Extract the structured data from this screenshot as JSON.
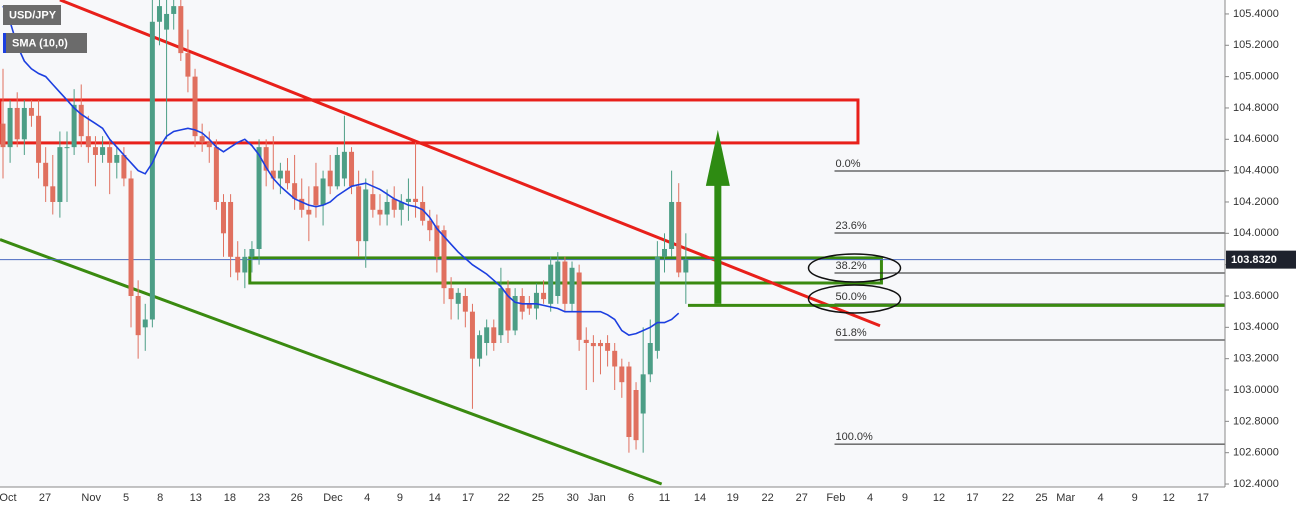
{
  "chart_data": {
    "type": "candlestick",
    "title": "USD/JPY",
    "up_color": "#4c9e86",
    "down_color": "#e0705f",
    "grid": true,
    "xlim": [
      -0.42,
      171.8
    ],
    "ylim": [
      102.381,
      105.489
    ],
    "yticks": [
      {
        "value": 102.4,
        "label": "102.4000"
      },
      {
        "value": 102.6,
        "label": "102.6000"
      },
      {
        "value": 102.8,
        "label": "102.8000"
      },
      {
        "value": 103.0,
        "label": "103.0000"
      },
      {
        "value": 103.2,
        "label": "103.2000"
      },
      {
        "value": 103.4,
        "label": "103.4000"
      },
      {
        "value": 103.6,
        "label": "103.6000"
      },
      {
        "value": 103.8,
        "label": "103.8000"
      },
      {
        "value": 104.0,
        "label": "104.0000"
      },
      {
        "value": 104.2,
        "label": "104.2000"
      },
      {
        "value": 104.4,
        "label": "104.4000"
      },
      {
        "value": 104.6,
        "label": "104.6000"
      },
      {
        "value": 104.8,
        "label": "104.8000"
      },
      {
        "value": 105.0,
        "label": "105.0000"
      },
      {
        "value": 105.2,
        "label": "105.2000"
      },
      {
        "value": 105.4,
        "label": "105.4000"
      }
    ],
    "xticks": [
      {
        "value": 0.7,
        "label": "Oct"
      },
      {
        "value": 5.9,
        "label": "27"
      },
      {
        "value": 12.4,
        "label": "Nov"
      },
      {
        "value": 17.3,
        "label": "5"
      },
      {
        "value": 22.1,
        "label": "8"
      },
      {
        "value": 27.1,
        "label": "13"
      },
      {
        "value": 31.9,
        "label": "18"
      },
      {
        "value": 36.7,
        "label": "23"
      },
      {
        "value": 41.3,
        "label": "26"
      },
      {
        "value": 46.4,
        "label": "Dec"
      },
      {
        "value": 51.2,
        "label": "4"
      },
      {
        "value": 55.8,
        "label": "9"
      },
      {
        "value": 60.7,
        "label": "14"
      },
      {
        "value": 65.4,
        "label": "17"
      },
      {
        "value": 70.4,
        "label": "22"
      },
      {
        "value": 75.2,
        "label": "25"
      },
      {
        "value": 80.1,
        "label": "30"
      },
      {
        "value": 83.5,
        "label": "Jan"
      },
      {
        "value": 88.3,
        "label": "6"
      },
      {
        "value": 93.0,
        "label": "11"
      },
      {
        "value": 98.0,
        "label": "14"
      },
      {
        "value": 102.6,
        "label": "19"
      },
      {
        "value": 107.5,
        "label": "22"
      },
      {
        "value": 112.3,
        "label": "27"
      },
      {
        "value": 117.1,
        "label": "Feb"
      },
      {
        "value": 121.9,
        "label": "4"
      },
      {
        "value": 126.8,
        "label": "9"
      },
      {
        "value": 131.6,
        "label": "12"
      },
      {
        "value": 136.3,
        "label": "17"
      },
      {
        "value": 141.3,
        "label": "22"
      },
      {
        "value": 146.0,
        "label": "25"
      },
      {
        "value": 149.4,
        "label": "Mar"
      },
      {
        "value": 154.3,
        "label": "4"
      },
      {
        "value": 159.1,
        "label": "9"
      },
      {
        "value": 163.9,
        "label": "12"
      },
      {
        "value": 168.7,
        "label": "17"
      }
    ],
    "open": [
      104.7,
      104.55,
      104.8,
      104.6,
      104.8,
      104.75,
      104.45,
      104.3,
      104.2,
      104.55,
      104.55,
      104.82,
      104.62,
      104.55,
      104.5,
      104.55,
      104.45,
      104.5,
      104.35,
      103.6,
      103.4,
      103.45,
      105.35,
      105.3,
      105.4,
      105.45,
      105.15,
      105.0,
      104.62,
      104.58,
      104.55,
      104.2,
      104.2,
      103.85,
      103.75,
      103.85,
      103.9,
      104.55,
      104.4,
      104.35,
      104.4,
      104.32,
      104.22,
      104.15,
      104.3,
      104.18,
      104.4,
      104.3,
      104.35,
      104.52,
      104.3,
      103.95,
      104.25,
      104.15,
      104.12,
      104.22,
      104.15,
      104.2,
      104.22,
      104.2,
      104.08,
      104.05,
      104.02,
      103.65,
      103.55,
      103.6,
      103.5,
      103.2,
      103.3,
      103.4,
      103.35,
      103.65,
      103.38,
      103.6,
      103.55,
      103.52,
      103.62,
      103.55,
      103.6,
      103.82,
      103.55,
      103.75,
      103.32,
      103.3,
      103.3,
      103.3,
      103.25,
      103.15,
      103.15,
      103.0,
      102.85,
      103.1,
      103.25,
      103.85,
      103.9,
      104.2,
      103.75
    ],
    "high": [
      105.05,
      104.85,
      104.9,
      104.85,
      104.85,
      104.85,
      104.55,
      104.5,
      104.65,
      104.65,
      104.92,
      104.95,
      104.75,
      104.62,
      104.62,
      104.6,
      104.55,
      104.55,
      104.4,
      103.7,
      103.55,
      105.65,
      105.6,
      105.55,
      105.6,
      105.55,
      105.3,
      105.05,
      104.7,
      104.65,
      104.6,
      104.25,
      104.25,
      103.95,
      103.9,
      103.95,
      104.6,
      104.6,
      104.62,
      104.45,
      104.48,
      104.5,
      104.35,
      104.3,
      104.45,
      104.4,
      104.5,
      104.55,
      104.75,
      104.55,
      104.4,
      104.35,
      104.4,
      104.25,
      104.28,
      104.3,
      104.25,
      104.35,
      104.58,
      104.3,
      104.15,
      104.12,
      104.05,
      103.72,
      103.65,
      103.65,
      103.55,
      103.38,
      103.45,
      103.45,
      103.78,
      103.7,
      103.65,
      103.65,
      103.6,
      103.68,
      103.7,
      103.85,
      103.88,
      103.85,
      103.82,
      103.8,
      103.4,
      103.35,
      103.32,
      103.35,
      103.3,
      103.2,
      103.18,
      103.05,
      103.4,
      103.45,
      103.95,
      104.0,
      104.4,
      104.32,
      104.0
    ],
    "low": [
      104.35,
      104.45,
      104.55,
      104.5,
      104.68,
      104.35,
      104.2,
      104.12,
      104.1,
      104.2,
      104.5,
      104.55,
      104.45,
      104.3,
      104.45,
      104.25,
      104.35,
      104.3,
      103.4,
      103.2,
      103.25,
      103.4,
      105.2,
      104.6,
      105.3,
      105.1,
      104.9,
      104.55,
      104.52,
      104.45,
      104.15,
      103.85,
      103.72,
      103.7,
      103.65,
      103.75,
      103.8,
      104.3,
      104.28,
      104.25,
      104.28,
      104.15,
      104.1,
      103.95,
      104.1,
      104.05,
      104.25,
      104.28,
      104.3,
      104.25,
      103.85,
      103.78,
      104.1,
      104.05,
      104.05,
      104.1,
      104.05,
      104.08,
      104.1,
      104.05,
      103.95,
      103.75,
      103.55,
      103.45,
      103.45,
      103.4,
      102.88,
      103.15,
      103.22,
      103.25,
      103.3,
      103.3,
      103.35,
      103.45,
      103.48,
      103.45,
      103.55,
      103.5,
      103.55,
      103.5,
      103.5,
      103.25,
      103.0,
      103.05,
      103.1,
      103.15,
      103.0,
      102.95,
      102.6,
      102.62,
      102.6,
      103.05,
      103.2,
      103.75,
      103.85,
      103.72,
      103.55
    ],
    "close": [
      104.55,
      104.8,
      104.6,
      104.8,
      104.75,
      104.45,
      104.3,
      104.2,
      104.55,
      104.55,
      104.82,
      104.62,
      104.55,
      104.5,
      104.55,
      104.45,
      104.5,
      104.35,
      103.6,
      103.35,
      103.45,
      105.35,
      105.45,
      105.4,
      105.45,
      105.15,
      105.0,
      104.62,
      104.58,
      104.55,
      104.2,
      104.0,
      103.85,
      103.75,
      103.85,
      103.9,
      104.55,
      104.4,
      104.35,
      104.4,
      104.32,
      104.22,
      104.15,
      104.12,
      104.18,
      104.35,
      104.3,
      104.5,
      104.52,
      104.3,
      103.95,
      104.28,
      104.15,
      104.12,
      104.2,
      104.15,
      104.2,
      104.22,
      104.2,
      104.08,
      104.02,
      103.85,
      103.65,
      103.58,
      103.62,
      103.5,
      103.2,
      103.35,
      103.4,
      103.3,
      103.65,
      103.38,
      103.6,
      103.5,
      103.52,
      103.62,
      103.58,
      103.8,
      103.82,
      103.55,
      103.78,
      103.32,
      103.3,
      103.28,
      103.28,
      103.25,
      103.15,
      103.05,
      102.7,
      102.68,
      103.1,
      103.3,
      103.85,
      103.9,
      104.2,
      103.75,
      103.83
    ],
    "indicator": {
      "name": "SMA (10,0)",
      "color": "#1c3fe0",
      "values": [
        105.45,
        105.35,
        105.2,
        105.1,
        105.05,
        105.02,
        105.0,
        104.95,
        104.9,
        104.85,
        104.8,
        104.76,
        104.73,
        104.7,
        104.67,
        104.6,
        104.55,
        104.5,
        104.45,
        104.4,
        104.38,
        104.45,
        104.55,
        104.62,
        104.65,
        104.66,
        104.67,
        104.66,
        104.64,
        104.6,
        104.55,
        104.52,
        104.55,
        104.58,
        104.6,
        104.56,
        104.5,
        104.42,
        104.35,
        104.3,
        104.26,
        104.22,
        104.2,
        104.18,
        104.17,
        104.18,
        104.2,
        104.24,
        104.27,
        104.3,
        104.31,
        104.32,
        104.3,
        104.28,
        104.25,
        104.22,
        104.2,
        104.18,
        104.17,
        104.15,
        104.1,
        104.03,
        103.98,
        103.93,
        103.88,
        103.84,
        103.8,
        103.77,
        103.74,
        103.7,
        103.66,
        103.6,
        103.56,
        103.55,
        103.55,
        103.55,
        103.54,
        103.53,
        103.52,
        103.5,
        103.5,
        103.5,
        103.5,
        103.5,
        103.5,
        103.48,
        103.45,
        103.38,
        103.35,
        103.36,
        103.38,
        103.4,
        103.43,
        103.43,
        103.45,
        103.49
      ]
    },
    "last_price": {
      "value": 103.832,
      "label": "103.8320",
      "color": "#4a6ac0"
    },
    "zones": [
      {
        "color": "#e8201a",
        "x": [
          -0.42,
          120.2
        ],
        "y": [
          104.577,
          104.851
        ]
      },
      {
        "color": "#3a8a10",
        "x": [
          34.7,
          123.5
        ],
        "y": [
          103.683,
          103.843
        ]
      }
    ],
    "trendlines": [
      {
        "color": "#e8201a",
        "points": [
          [
            8.0,
            105.49
          ],
          [
            123.3,
            103.41
          ]
        ]
      },
      {
        "color": "#3a8a10",
        "points": [
          [
            -0.42,
            103.96
          ],
          [
            92.6,
            102.4
          ]
        ]
      }
    ],
    "support_line": {
      "color": "#3a8a10",
      "value": 103.54,
      "x": [
        96.3,
        171.8
      ]
    },
    "arrow": {
      "color": "#2e8b12",
      "x": 100.5,
      "y": [
        103.55,
        104.66
      ]
    },
    "fib_x": [
      116.9,
      171.8
    ],
    "fib_levels": [
      {
        "label": "0.0%",
        "value": 104.398
      },
      {
        "label": "23.6%",
        "value": 104.002
      },
      {
        "label": "38.2%",
        "value": 103.747,
        "circled": true
      },
      {
        "label": "50.0%",
        "value": 103.549,
        "circled": true
      },
      {
        "label": "61.8%",
        "value": 103.319
      },
      {
        "label": "100.0%",
        "value": 102.655
      }
    ]
  }
}
